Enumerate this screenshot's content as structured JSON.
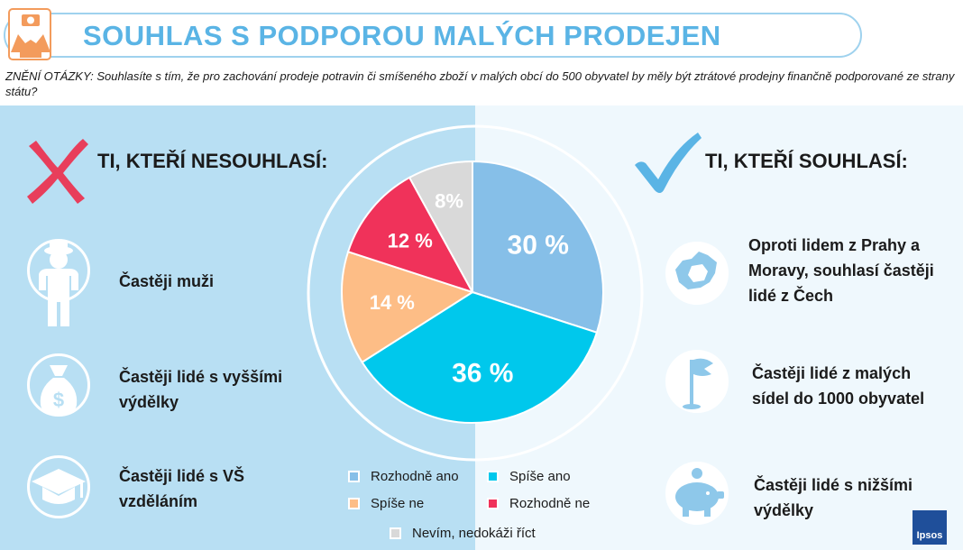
{
  "header": {
    "title": "SOUHLAS S PODPOROU MALÝCH PRODEJEN",
    "question": "ZNĚNÍ OTÁZKY: Souhlasíte s tím, že pro zachování prodeje potravin či smíšeného zboží v malých obcí do 500 obyvatel by měly být ztrátové prodejny finančně podporované ze strany státu?"
  },
  "left": {
    "heading": "TI, KTEŘÍ NESOUHLASÍ:",
    "items": [
      {
        "label": "Častěji muži",
        "icon": "man-icon"
      },
      {
        "label": "Častěji lidé s vyššími výdělky",
        "icon": "money-bag-icon"
      },
      {
        "label": "Častěji lidé s VŠ vzděláním",
        "icon": "graduation-cap-icon"
      }
    ]
  },
  "right": {
    "heading": "TI, KTEŘÍ SOUHLASÍ:",
    "items": [
      {
        "label": "Oproti lidem z Prahy a Moravy, souhlasí častěji lidé z Čech",
        "icon": "map-icon"
      },
      {
        "label": "Častěji lidé z malých sídel do 1000 obyvatel",
        "icon": "flag-icon"
      },
      {
        "label": "Častěji lidé s nižšími výdělky",
        "icon": "piggy-bank-icon"
      }
    ]
  },
  "colors": {
    "title": "#5ab4e5",
    "left_bg": "#b8dff3",
    "right_bg": "#eff8fd",
    "cross": "#e83e5b",
    "check": "#5ab4e5"
  },
  "chart_data": {
    "type": "pie",
    "slices": [
      {
        "name": "Rozhodně ano",
        "value": 30,
        "label": "30 %",
        "color": "#86bfe8"
      },
      {
        "name": "Spíše ano",
        "value": 36,
        "label": "36 %",
        "color": "#00c8ec"
      },
      {
        "name": "Spíše ne",
        "value": 14,
        "label": "14 %",
        "color": "#fdbd86"
      },
      {
        "name": "Rozhodně ne",
        "value": 12,
        "label": "12 %",
        "color": "#f0325a"
      },
      {
        "name": "Nevím, nedokáži říct",
        "value": 8,
        "label": "8%",
        "color": "#d9d9d9"
      }
    ],
    "legend_position": "bottom"
  },
  "logo": {
    "text": "Ipsos"
  }
}
